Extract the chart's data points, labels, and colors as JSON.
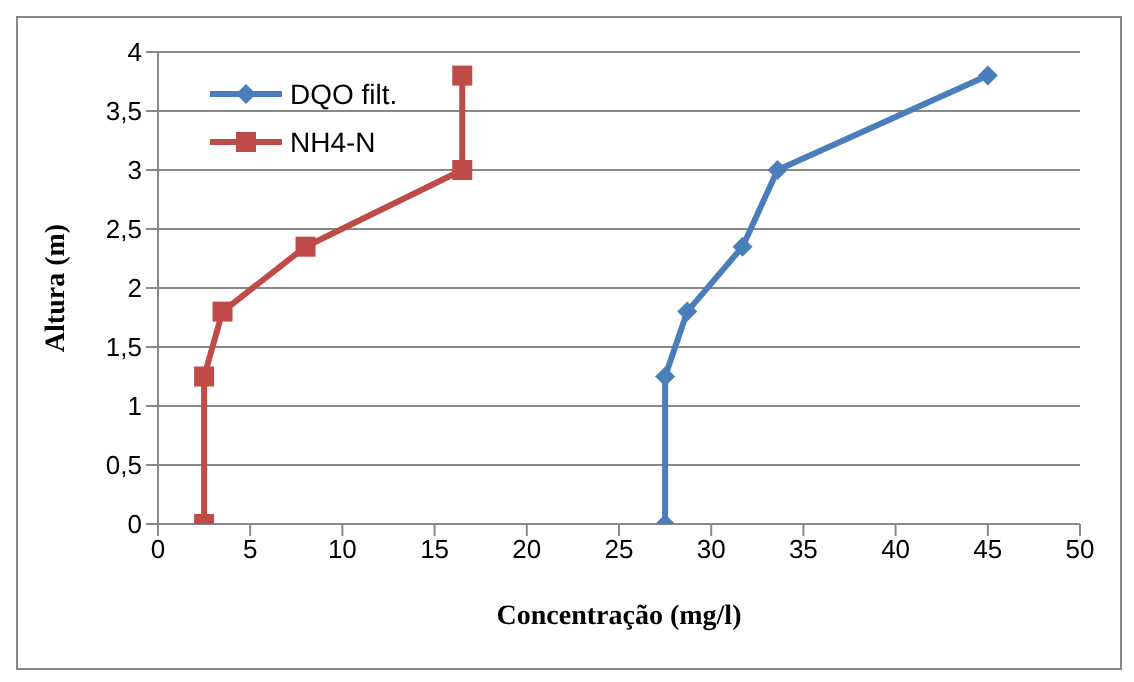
{
  "chart_data": {
    "type": "line",
    "xlabel": "Concentração (mg/l)",
    "ylabel": "Altura (m)",
    "xlim": [
      0,
      50
    ],
    "xticks": [
      0,
      5,
      10,
      15,
      20,
      25,
      30,
      35,
      40,
      45,
      50
    ],
    "ylim": [
      0,
      4
    ],
    "yticks": [
      0,
      {
        "value": 0.5,
        "label": "0,5"
      },
      1,
      {
        "value": 1.5,
        "label": "1,5"
      },
      2,
      {
        "value": 2.5,
        "label": "2,5"
      },
      3,
      {
        "value": 3.5,
        "label": "3,5"
      },
      4
    ],
    "grid": "y",
    "legend": "top left",
    "line_style": "solid",
    "series": [
      {
        "name": "DQO filt.",
        "color": "#4a7ebb",
        "marker": "diamond",
        "x": [
          27.5,
          27.5,
          28.7,
          31.7,
          33.6,
          45
        ],
        "values": [
          0,
          1.25,
          1.8,
          2.35,
          3,
          3.8
        ]
      },
      {
        "name": "NH4-N",
        "color": "#be4b48",
        "marker": "square",
        "x": [
          2.5,
          2.5,
          3.5,
          8,
          16.5,
          16.5
        ],
        "values": [
          0,
          1.25,
          1.8,
          2.35,
          3,
          3.8
        ]
      }
    ]
  }
}
